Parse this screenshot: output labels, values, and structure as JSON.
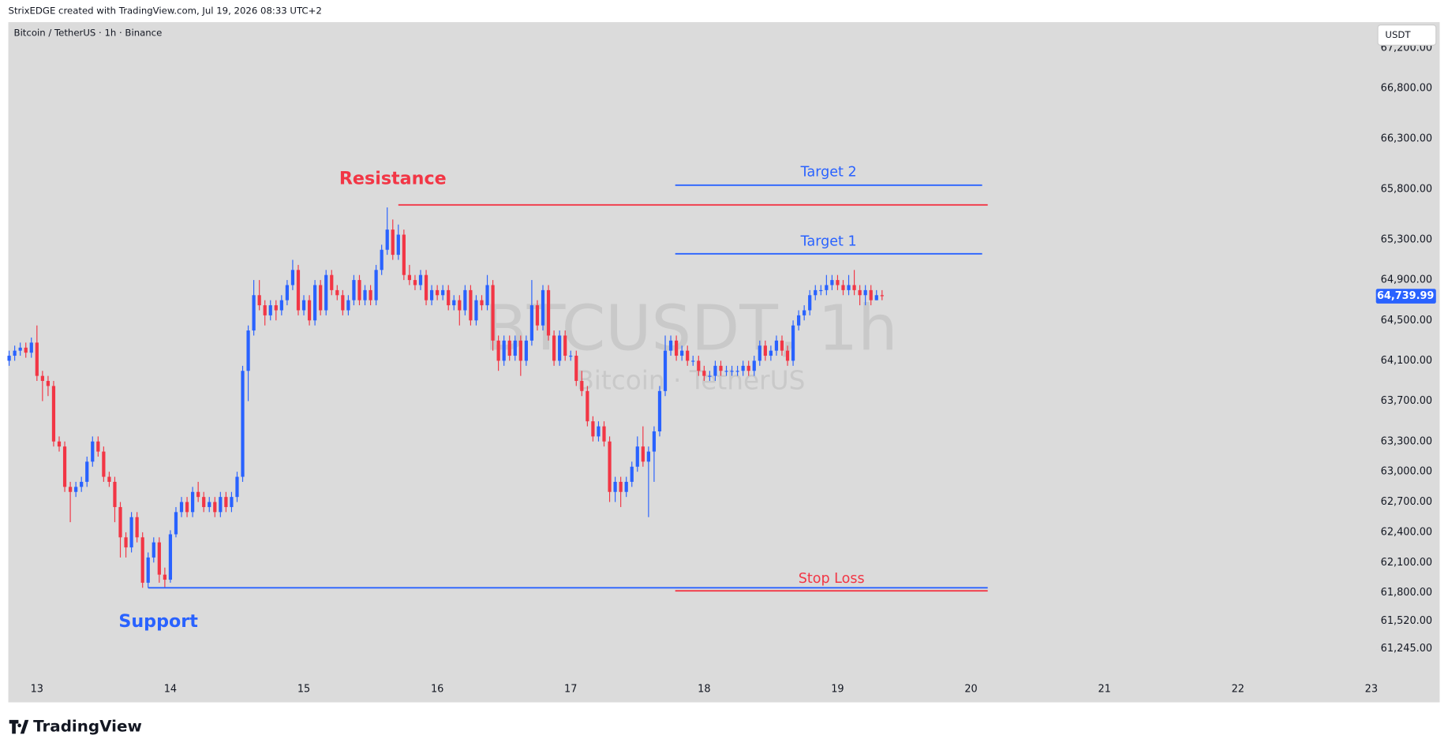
{
  "header": {
    "attribution": "StrixEDGE created with TradingView.com, Jul 19, 2026 08:33 UTC+2",
    "currency": "USDT"
  },
  "footer": {
    "brand": "TradingView"
  },
  "chart_data": {
    "type": "candlestick",
    "title": "Bitcoin / TetherUS · 1h · Binance",
    "watermark": "BTCUSDT, 1h",
    "watermark_subtitle": "Bitcoin · TetherUS",
    "up_color": "#2962ff",
    "down_color": "#f23645",
    "x": [
      -5,
      -4,
      -3,
      -2,
      -1,
      0,
      1,
      2,
      3,
      4,
      5,
      6,
      7,
      8,
      9,
      10,
      11,
      12,
      13,
      14,
      15,
      16,
      17,
      18,
      19,
      20,
      21,
      22,
      23,
      24,
      25,
      26,
      27,
      28,
      29,
      30,
      31,
      32,
      33,
      34,
      35,
      36,
      37,
      38,
      39,
      40,
      41,
      42,
      43,
      44,
      45,
      46,
      47,
      48,
      49,
      50,
      51,
      52,
      53,
      54,
      55,
      56,
      57,
      58,
      59,
      60,
      61,
      62,
      63,
      64,
      65,
      66,
      67,
      68,
      69,
      70,
      71,
      72,
      73,
      74,
      75,
      76,
      77,
      78,
      79,
      80,
      81,
      82,
      83,
      84,
      85,
      86,
      87,
      88,
      89,
      90,
      91,
      92,
      93,
      94,
      95,
      96,
      97,
      98,
      99,
      100,
      101,
      102,
      103,
      104,
      105,
      106,
      107,
      108,
      109,
      110,
      111,
      112,
      113,
      114,
      115,
      116,
      117,
      118,
      119,
      120,
      121,
      122,
      123,
      124,
      125,
      126,
      127,
      128,
      129,
      130,
      131,
      132,
      133,
      134,
      135,
      136,
      137,
      138,
      139,
      140,
      141,
      142,
      143,
      144,
      145,
      146,
      147,
      148,
      149,
      150,
      151,
      152
    ],
    "open": [
      64100,
      64150,
      64200,
      64230,
      64180,
      64280,
      63950,
      63900,
      63850,
      63300,
      63250,
      62850,
      62800,
      62850,
      62900,
      63100,
      63300,
      63200,
      62950,
      62900,
      62650,
      62350,
      62250,
      62550,
      62350,
      61900,
      62150,
      62300,
      61980,
      61930,
      62380,
      62600,
      62700,
      62600,
      62800,
      62750,
      62650,
      62700,
      62600,
      62750,
      62650,
      62750,
      62950,
      64000,
      64400,
      64750,
      64650,
      64550,
      64650,
      64600,
      64700,
      64850,
      65000,
      64600,
      64700,
      64500,
      64850,
      64600,
      64950,
      64800,
      64750,
      64600,
      64700,
      64900,
      64700,
      64800,
      64700,
      65000,
      65200,
      65400,
      65150,
      65350,
      64950,
      64900,
      64850,
      64950,
      64700,
      64800,
      64750,
      64800,
      64650,
      64700,
      64600,
      64800,
      64500,
      64700,
      64650,
      64850,
      64300,
      64100,
      64300,
      64150,
      64300,
      64100,
      64300,
      64650,
      64450,
      64800,
      64350,
      64100,
      64350,
      64150,
      64150,
      63900,
      63800,
      63500,
      63350,
      63450,
      63300,
      62800,
      62900,
      62800,
      62900,
      63050,
      63250,
      63100,
      63200,
      63400,
      63800,
      64200,
      64300,
      64150,
      64200,
      64100,
      64100,
      64000,
      63950,
      63950,
      64050,
      64000,
      64000,
      64000,
      64000,
      64050,
      64000,
      64100,
      64250,
      64150,
      64200,
      64300,
      64200,
      64100,
      64450,
      64550,
      64600,
      64750,
      64800,
      64800,
      64850,
      64900,
      64850,
      64800,
      64850,
      64800,
      64750,
      64800,
      64700,
      64750
    ],
    "high": [
      64200,
      64250,
      64280,
      64280,
      64330,
      64450,
      64000,
      63950,
      63900,
      63350,
      63300,
      62900,
      62900,
      62950,
      63150,
      63350,
      63350,
      63250,
      63000,
      62950,
      62700,
      62400,
      62600,
      62600,
      62400,
      62200,
      62350,
      62350,
      62050,
      62420,
      62650,
      62750,
      62750,
      62850,
      62900,
      62800,
      62750,
      62750,
      62800,
      62800,
      62800,
      63000,
      64050,
      64450,
      64900,
      64900,
      64700,
      64700,
      64700,
      64750,
      64900,
      65100,
      65050,
      64750,
      64750,
      64900,
      64900,
      65000,
      65000,
      64850,
      64800,
      64750,
      64950,
      64950,
      64850,
      64850,
      65050,
      65250,
      65620,
      65500,
      65450,
      65400,
      65050,
      64950,
      65000,
      65000,
      64850,
      64850,
      64850,
      64850,
      64750,
      64750,
      64850,
      64850,
      64750,
      64750,
      64950,
      64900,
      64350,
      64350,
      64350,
      64350,
      64350,
      64350,
      64900,
      64700,
      64850,
      64850,
      64400,
      64400,
      64400,
      64200,
      64200,
      64000,
      63850,
      63550,
      63500,
      63500,
      63350,
      62950,
      62950,
      62950,
      63100,
      63350,
      63450,
      63250,
      63450,
      63850,
      64350,
      64350,
      64350,
      64250,
      64250,
      64150,
      64150,
      64050,
      64000,
      64100,
      64100,
      64050,
      64050,
      64050,
      64100,
      64100,
      64150,
      64300,
      64300,
      64250,
      64350,
      64350,
      64250,
      64500,
      64600,
      64650,
      64800,
      64850,
      64850,
      64950,
      64950,
      64950,
      64900,
      64950,
      65000,
      64850,
      64850,
      64850,
      64800,
      64800
    ],
    "low": [
      64050,
      64100,
      64150,
      64130,
      64130,
      63900,
      63700,
      63750,
      63250,
      63200,
      62800,
      62500,
      62750,
      62800,
      62850,
      63050,
      63150,
      62900,
      62850,
      62500,
      62150,
      62150,
      62200,
      62300,
      61850,
      61850,
      62100,
      61900,
      61850,
      61900,
      62350,
      62550,
      62550,
      62550,
      62700,
      62600,
      62600,
      62550,
      62550,
      62600,
      62600,
      62700,
      62900,
      63700,
      64350,
      64600,
      64450,
      64500,
      64500,
      64550,
      64650,
      64800,
      64550,
      64550,
      64450,
      64450,
      64550,
      64550,
      64750,
      64700,
      64550,
      64550,
      64650,
      64650,
      64650,
      64650,
      64650,
      64950,
      65150,
      65100,
      65100,
      64900,
      64850,
      64800,
      64800,
      64650,
      64650,
      64700,
      64700,
      64600,
      64600,
      64450,
      64550,
      64450,
      64450,
      64600,
      64600,
      64200,
      64000,
      64050,
      64100,
      64100,
      63950,
      64050,
      64250,
      64400,
      64400,
      64300,
      64050,
      64050,
      64100,
      64100,
      63850,
      63750,
      63450,
      63300,
      63300,
      63250,
      62700,
      62700,
      62650,
      62750,
      62850,
      63000,
      63050,
      62550,
      62900,
      63350,
      63750,
      64150,
      64100,
      64100,
      64050,
      64050,
      63950,
      63900,
      63900,
      63900,
      63950,
      63950,
      63950,
      63950,
      63950,
      63950,
      63950,
      64050,
      64100,
      64100,
      64150,
      64150,
      64050,
      64050,
      64400,
      64500,
      64550,
      64700,
      64750,
      64750,
      64800,
      64800,
      64750,
      64750,
      64750,
      64650,
      64650,
      64650,
      64700,
      64700
    ],
    "close": [
      64150,
      64200,
      64230,
      64180,
      64280,
      63950,
      63900,
      63850,
      63300,
      63250,
      62850,
      62800,
      62850,
      62900,
      63100,
      63300,
      63200,
      62950,
      62900,
      62650,
      62350,
      62250,
      62550,
      62350,
      61900,
      62150,
      62300,
      61980,
      61930,
      62380,
      62600,
      62700,
      62600,
      62800,
      62750,
      62650,
      62700,
      62600,
      62750,
      62650,
      62750,
      62950,
      64000,
      64400,
      64750,
      64650,
      64550,
      64650,
      64600,
      64700,
      64850,
      65000,
      64600,
      64700,
      64500,
      64850,
      64600,
      64950,
      64800,
      64750,
      64600,
      64700,
      64900,
      64700,
      64800,
      64700,
      65000,
      65200,
      65400,
      65150,
      65350,
      64950,
      64900,
      64850,
      64950,
      64700,
      64800,
      64750,
      64800,
      64650,
      64700,
      64600,
      64800,
      64500,
      64700,
      64650,
      64850,
      64300,
      64100,
      64300,
      64150,
      64300,
      64100,
      64300,
      64650,
      64450,
      64800,
      64350,
      64100,
      64350,
      64150,
      64150,
      63900,
      63800,
      63500,
      63350,
      63450,
      63300,
      62800,
      62900,
      62800,
      62900,
      63050,
      63250,
      63100,
      63200,
      63400,
      63800,
      64200,
      64300,
      64150,
      64200,
      64100,
      64100,
      64000,
      63950,
      63950,
      64050,
      64000,
      64000,
      64000,
      64000,
      64050,
      64000,
      64100,
      64250,
      64150,
      64200,
      64300,
      64200,
      64100,
      64450,
      64550,
      64600,
      64750,
      64800,
      64800,
      64850,
      64900,
      64850,
      64800,
      64850,
      64800,
      64750,
      64800,
      64700,
      64750,
      64739.99
    ],
    "last_price_label": "64,739.99",
    "xlim": [
      -5.15,
      240.5
    ],
    "xticks": [
      {
        "value": 0,
        "label": "13"
      },
      {
        "value": 24,
        "label": "14"
      },
      {
        "value": 48,
        "label": "15"
      },
      {
        "value": 72,
        "label": "16"
      },
      {
        "value": 96,
        "label": "17"
      },
      {
        "value": 120,
        "label": "18"
      },
      {
        "value": 144,
        "label": "19"
      },
      {
        "value": 168,
        "label": "20"
      },
      {
        "value": 192,
        "label": "21"
      },
      {
        "value": 216,
        "label": "22"
      },
      {
        "value": 240,
        "label": "23"
      }
    ],
    "ylim": [
      60952,
      67456
    ],
    "yticks": [
      {
        "value": 67200,
        "label": "67,200.00"
      },
      {
        "value": 66800,
        "label": "66,800.00"
      },
      {
        "value": 66300,
        "label": "66,300.00"
      },
      {
        "value": 65800,
        "label": "65,800.00"
      },
      {
        "value": 65300,
        "label": "65,300.00"
      },
      {
        "value": 64900,
        "label": "64,900.00"
      },
      {
        "value": 64500,
        "label": "64,500.00"
      },
      {
        "value": 64100,
        "label": "64,100.00"
      },
      {
        "value": 63700,
        "label": "63,700.00"
      },
      {
        "value": 63300,
        "label": "63,300.00"
      },
      {
        "value": 63000,
        "label": "63,000.00"
      },
      {
        "value": 62700,
        "label": "62,700.00"
      },
      {
        "value": 62400,
        "label": "62,400.00"
      },
      {
        "value": 62100,
        "label": "62,100.00"
      },
      {
        "value": 61800,
        "label": "61,800.00"
      },
      {
        "value": 61520,
        "label": "61,520.00"
      },
      {
        "value": 61245,
        "label": "61,245.00"
      }
    ],
    "drawings": [
      {
        "label": "Resistance",
        "price": 65645,
        "x_start": 65,
        "x_end": 171,
        "color": "#f23645"
      },
      {
        "label": "Target 2",
        "price": 65840,
        "x_start": 114.8,
        "x_end": 170,
        "color": "#2962ff"
      },
      {
        "label": "Target 1",
        "price": 65160,
        "x_start": 114.8,
        "x_end": 170,
        "color": "#2962ff"
      },
      {
        "label": "Stop Loss",
        "price": 61820,
        "x_start": 114.8,
        "x_end": 171,
        "color": "#f23645"
      },
      {
        "label": "Support",
        "price": 61850,
        "x_start": 20,
        "x_end": 171,
        "color": "#2962ff"
      }
    ]
  }
}
